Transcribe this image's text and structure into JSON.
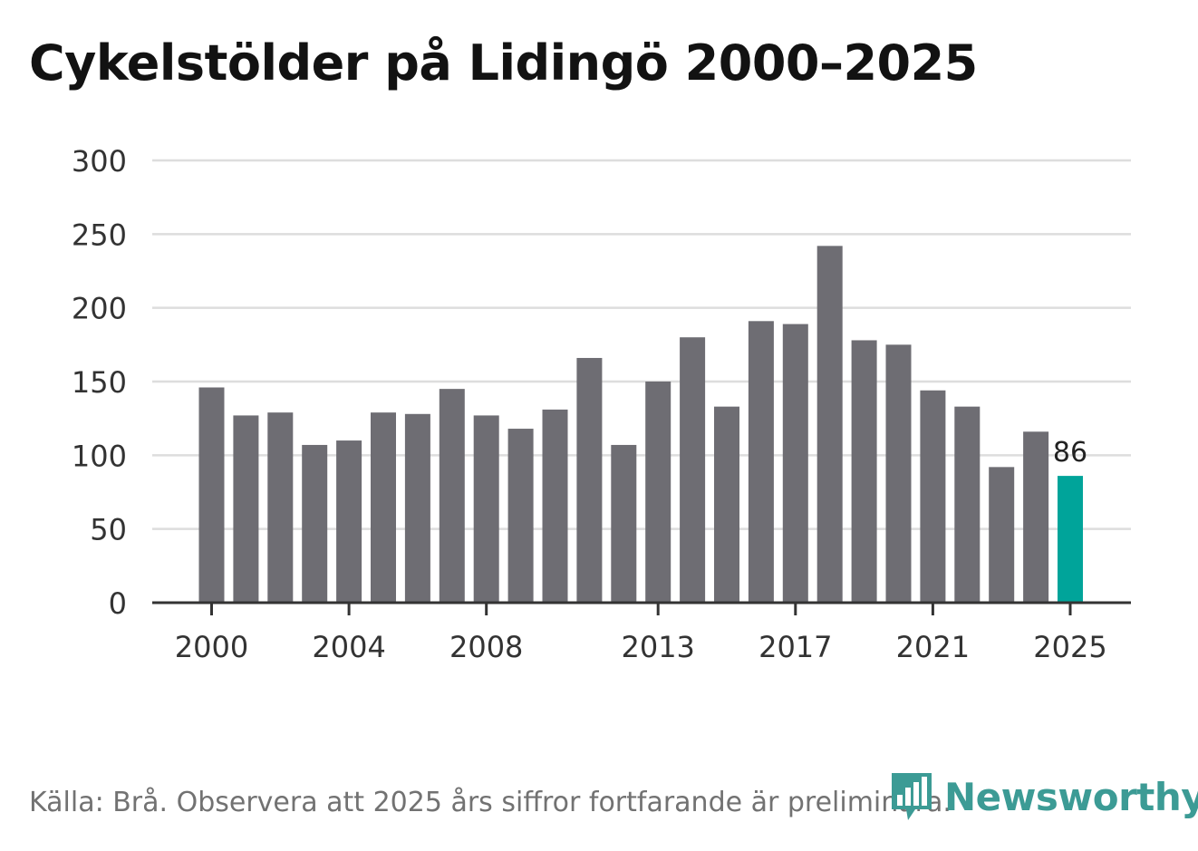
{
  "title": "Cykelstölder på Lidingö 2000–2025",
  "source_note": "Källa: Brå. Observera att 2025 års siffror fortfarande är preliminära.",
  "logo": {
    "text": "Newsworthy",
    "icon": "newsworthy-bar-chart-icon"
  },
  "colors": {
    "bar": "#6e6d73",
    "highlight": "#00a49a",
    "grid": "#dddddd",
    "axis": "#333333",
    "text": "#333333",
    "logo": "#3c9b95"
  },
  "chart_data": {
    "type": "bar",
    "title": "Cykelstölder på Lidingö 2000–2025",
    "xlabel": "",
    "ylabel": "",
    "categories": [
      "2000",
      "2001",
      "2002",
      "2003",
      "2004",
      "2005",
      "2006",
      "2007",
      "2008",
      "2009",
      "2010",
      "2011",
      "2012",
      "2013",
      "2014",
      "2015",
      "2016",
      "2017",
      "2018",
      "2019",
      "2020",
      "2021",
      "2022",
      "2023",
      "2024",
      "2025"
    ],
    "values": [
      146,
      127,
      129,
      107,
      110,
      129,
      128,
      145,
      127,
      118,
      131,
      166,
      107,
      150,
      180,
      133,
      191,
      189,
      242,
      178,
      175,
      144,
      133,
      92,
      116,
      86
    ],
    "highlight_category": "2025",
    "data_labels": [
      {
        "category": "2025",
        "label": "86"
      }
    ],
    "ylim": [
      0,
      300
    ],
    "yticks": [
      0,
      50,
      100,
      150,
      200,
      250,
      300
    ],
    "ytick_labels": [
      "0",
      "50",
      "100",
      "150",
      "200",
      "250",
      "300"
    ],
    "xticks": [
      "2000",
      "2004",
      "2008",
      "2013",
      "2017",
      "2021",
      "2025"
    ],
    "grid": true,
    "legend": false
  }
}
